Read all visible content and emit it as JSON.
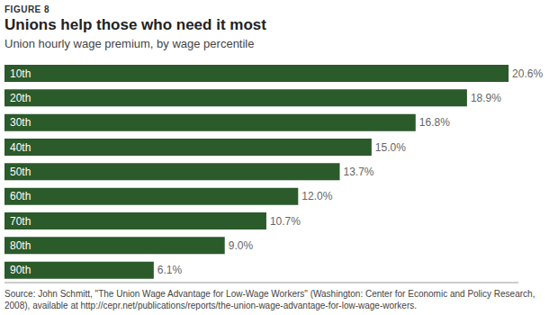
{
  "chart_data": {
    "type": "bar",
    "orientation": "horizontal",
    "figure_label": "FIGURE 8",
    "title": "Unions help those who need it most",
    "subtitle": "Union hourly wage premium, by wage percentile",
    "categories": [
      "10th",
      "20th",
      "30th",
      "40th",
      "50th",
      "60th",
      "70th",
      "80th",
      "90th"
    ],
    "values": [
      20.6,
      18.9,
      16.8,
      15.0,
      13.7,
      12.0,
      10.7,
      9.0,
      6.1
    ],
    "value_labels": [
      "20.6%",
      "18.9%",
      "16.8%",
      "15.0%",
      "13.7%",
      "12.0%",
      "10.7%",
      "9.0%",
      "6.1%"
    ],
    "data_labels": true,
    "color": "#2b5a2b",
    "xlim": [
      0,
      21
    ],
    "grid": false,
    "source": "Source: John Schmitt, \"The Union Wage Advantage for Low-Wage Workers\" (Washington: Center for Economic and Policy Research, 2008), available at http://cepr.net/publications/reports/the-union-wage-advantage-for-low-wage-workers."
  }
}
